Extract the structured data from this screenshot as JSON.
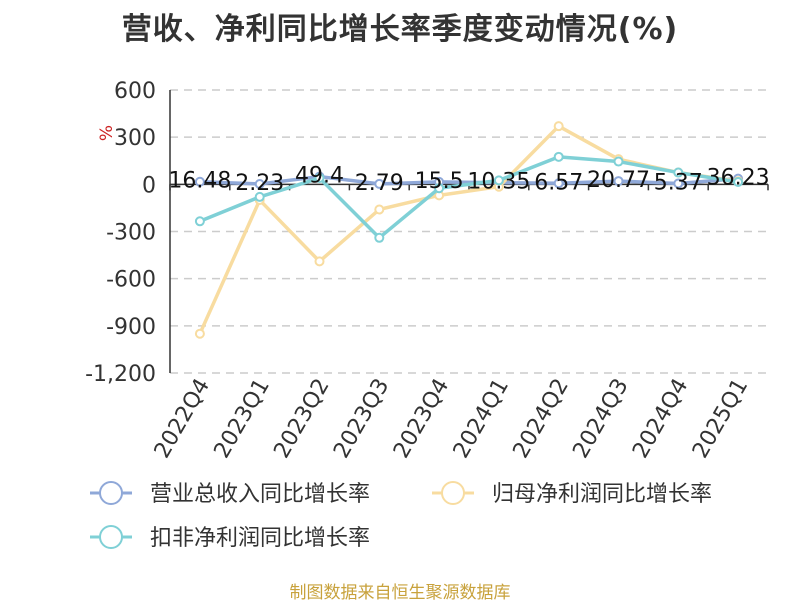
{
  "title": "营收、净利同比增长率季度变动情况(%)",
  "source": "制图数据来自恒生聚源数据库",
  "chart_data": {
    "type": "line",
    "title": "营收、净利同比增长率季度变动情况(%)",
    "ylabel": "%",
    "ylim": [
      -1200,
      600
    ],
    "yticks": [
      600,
      300,
      0,
      -300,
      -600,
      -900,
      -1200
    ],
    "ytick_labels": [
      "600",
      "300",
      "0",
      "-300",
      "-600",
      "-900",
      "-1,200"
    ],
    "categories": [
      "2022Q4",
      "2023Q1",
      "2023Q2",
      "2023Q3",
      "2023Q4",
      "2024Q1",
      "2024Q2",
      "2024Q3",
      "2024Q4",
      "2025Q1"
    ],
    "grid": true,
    "legend_position": "bottom",
    "series": [
      {
        "name": "营业总收入同比增长率",
        "color": "#8fa8d8",
        "values": [
          16.48,
          2.23,
          49.4,
          2.79,
          15.5,
          10.35,
          6.57,
          20.77,
          5.37,
          36.23
        ],
        "labels": [
          "16.48",
          "2.23",
          "49.4",
          "2.79",
          "15.5",
          "10.35",
          "6.57",
          "20.77",
          "5.37",
          "36.23"
        ]
      },
      {
        "name": "归母净利润同比增长率",
        "color": "#f8dca0",
        "values": [
          -950,
          -100,
          -490,
          -160,
          -70,
          -15,
          370,
          160,
          75,
          20
        ]
      },
      {
        "name": "扣非净利润同比增长率",
        "color": "#7fd0d6",
        "values": [
          -235,
          -80,
          40,
          -340,
          -25,
          25,
          175,
          145,
          75,
          15
        ]
      }
    ]
  }
}
